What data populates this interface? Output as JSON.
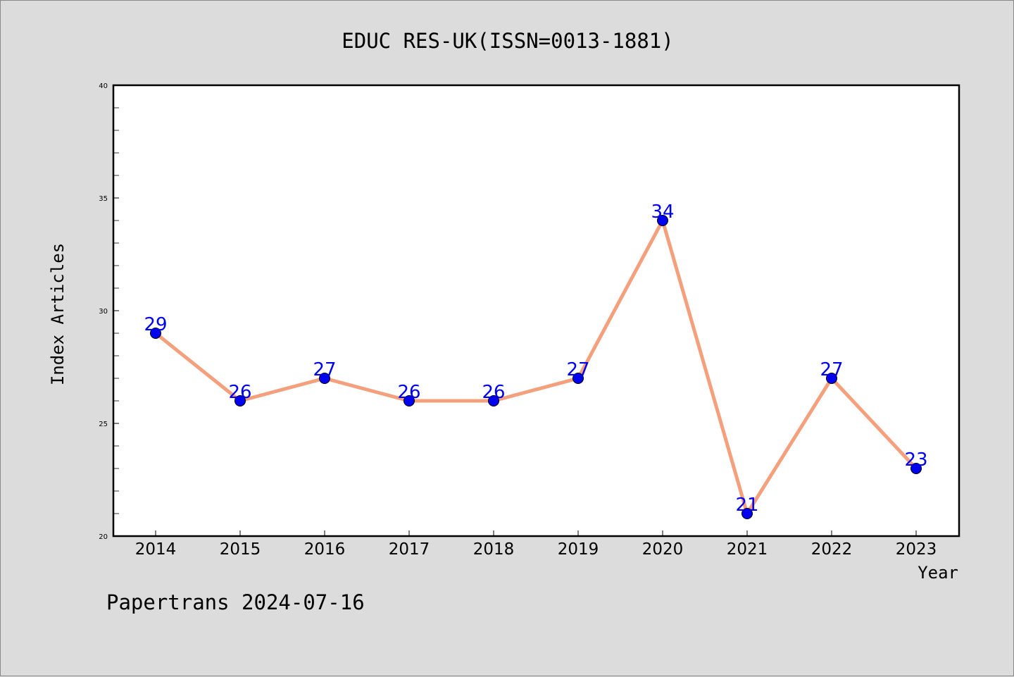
{
  "chart_data": {
    "type": "line",
    "title": "EDUC RES-UK(ISSN=0013-1881)",
    "xlabel": "Year",
    "ylabel": "Index Articles",
    "categories": [
      "2014",
      "2015",
      "2016",
      "2017",
      "2018",
      "2019",
      "2020",
      "2021",
      "2022",
      "2023"
    ],
    "values": [
      29,
      26,
      27,
      26,
      26,
      27,
      34,
      21,
      27,
      23
    ],
    "ylim": [
      20,
      40
    ],
    "yticks": [
      20,
      25,
      30,
      35,
      40
    ],
    "grid": false,
    "legend": "none",
    "line_color": "#f4a07c",
    "marker_color": "#0000ee",
    "label_color": "#0000ee"
  },
  "footer": "Papertrans 2024-07-16"
}
